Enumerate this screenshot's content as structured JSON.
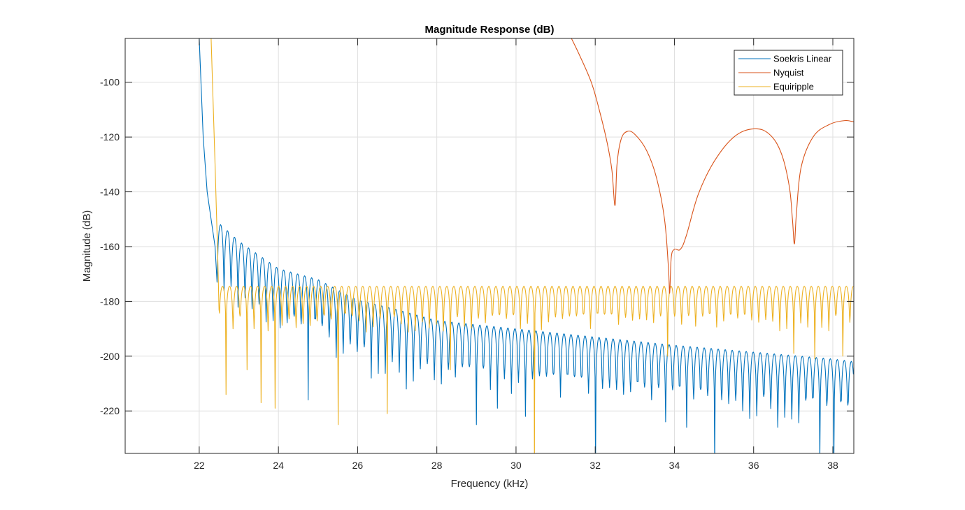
{
  "chart_data": {
    "type": "line",
    "title": "Magnitude Response (dB)",
    "xlabel": "Frequency (kHz)",
    "ylabel": "Magnitude (dB)",
    "xlim": [
      20.13,
      38.53
    ],
    "ylim": [
      -235.5,
      -84
    ],
    "grid": true,
    "legend_position": "top-right",
    "x_ticks": [
      22,
      24,
      26,
      28,
      30,
      32,
      34,
      36,
      38
    ],
    "x_tick_labels": [
      "22",
      "24",
      "26",
      "28",
      "30",
      "32",
      "34",
      "36",
      "38"
    ],
    "y_ticks": [
      -220,
      -200,
      -180,
      -160,
      -140,
      -120,
      -100
    ],
    "y_tick_labels": [
      "-220",
      "-200",
      "-180",
      "-160",
      "-140",
      "-120",
      "-100"
    ],
    "series": [
      {
        "name": "Soekris Linear",
        "color": "#0072BD",
        "transition": [
          [
            22.0,
            -84
          ],
          [
            22.1,
            -120
          ],
          [
            22.2,
            -140
          ],
          [
            22.3,
            -150
          ],
          [
            22.4,
            -160
          ],
          [
            22.45,
            -173
          ]
        ],
        "stopband_start": 22.45,
        "ripple_period_khz": 0.177,
        "peak_envelope": [
          [
            22.55,
            -152
          ],
          [
            23.0,
            -158
          ],
          [
            24.0,
            -168
          ],
          [
            25.0,
            -172
          ],
          [
            26.0,
            -179.5
          ],
          [
            27.0,
            -183
          ],
          [
            28.0,
            -187
          ],
          [
            30.0,
            -190
          ],
          [
            32.0,
            -193
          ],
          [
            34.0,
            -196
          ],
          [
            36.0,
            -198.5
          ],
          [
            38.0,
            -201
          ],
          [
            38.53,
            -202
          ]
        ],
        "typical_null_depth_db": 18,
        "deep_nulls": [
          [
            24.7,
            -216
          ],
          [
            26.3,
            -208
          ],
          [
            27.3,
            -212
          ],
          [
            29.0,
            -225
          ],
          [
            29.45,
            -219
          ],
          [
            30.25,
            -222
          ],
          [
            31.05,
            -215
          ],
          [
            32.0,
            -240
          ],
          [
            32.9,
            -213
          ],
          [
            33.8,
            -224
          ],
          [
            34.3,
            -226
          ],
          [
            35.05,
            -240
          ],
          [
            35.75,
            -220
          ],
          [
            36.6,
            -226
          ],
          [
            37.0,
            -223
          ],
          [
            37.6,
            -238
          ],
          [
            38.05,
            -240
          ]
        ]
      },
      {
        "name": "Nyquist",
        "color": "#D95319",
        "points": [
          [
            31.4,
            -84
          ],
          [
            31.6,
            -90
          ],
          [
            31.9,
            -100
          ],
          [
            32.1,
            -110
          ],
          [
            32.3,
            -122
          ],
          [
            32.42,
            -132
          ],
          [
            32.5,
            -145
          ],
          [
            32.55,
            -130
          ],
          [
            32.65,
            -121
          ],
          [
            32.8,
            -118
          ],
          [
            33.0,
            -119
          ],
          [
            33.3,
            -125
          ],
          [
            33.55,
            -135
          ],
          [
            33.75,
            -150
          ],
          [
            33.85,
            -168
          ],
          [
            33.88,
            -177
          ],
          [
            33.92,
            -164
          ],
          [
            34.0,
            -161
          ],
          [
            34.15,
            -161
          ],
          [
            34.3,
            -156
          ],
          [
            34.6,
            -141
          ],
          [
            35.0,
            -129
          ],
          [
            35.5,
            -120
          ],
          [
            36.0,
            -117
          ],
          [
            36.4,
            -119
          ],
          [
            36.7,
            -126
          ],
          [
            36.9,
            -138
          ],
          [
            36.98,
            -150
          ],
          [
            37.03,
            -159
          ],
          [
            37.08,
            -148
          ],
          [
            37.2,
            -131
          ],
          [
            37.5,
            -120
          ],
          [
            37.9,
            -115.5
          ],
          [
            38.3,
            -114
          ],
          [
            38.53,
            -114.5
          ]
        ]
      },
      {
        "name": "Equiripple",
        "color": "#EDB120",
        "transition": [
          [
            22.3,
            -84
          ],
          [
            22.4,
            -130
          ],
          [
            22.47,
            -165
          ],
          [
            22.5,
            -183
          ]
        ],
        "stopband_start": 22.5,
        "ripple_period_khz": 0.177,
        "peak_level_db": -174.5,
        "typical_null_depth_db": 12,
        "deep_nulls": [
          [
            22.6,
            -214
          ],
          [
            23.15,
            -205
          ],
          [
            23.6,
            -217
          ],
          [
            23.95,
            -219
          ],
          [
            25.45,
            -225
          ],
          [
            26.7,
            -221
          ],
          [
            28.3,
            -205
          ],
          [
            30.55,
            -240
          ],
          [
            33.9,
            -200
          ],
          [
            37.0,
            -199
          ],
          [
            37.6,
            -201
          ],
          [
            38.3,
            -200
          ]
        ]
      }
    ]
  },
  "legend": {
    "items": [
      "Soekris Linear",
      "Nyquist",
      "Equiripple"
    ]
  }
}
